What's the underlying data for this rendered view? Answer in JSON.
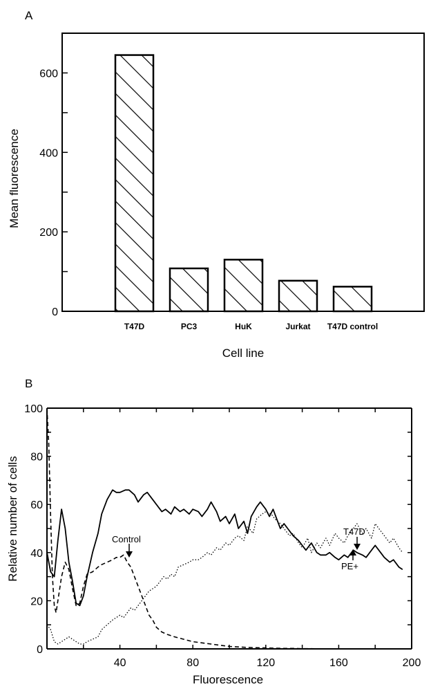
{
  "figure": {
    "panels": [
      "A",
      "B"
    ]
  },
  "chart_data": [
    {
      "type": "bar",
      "panel": "A",
      "categories": [
        "T47D",
        "PC3",
        "HuK",
        "Jurkat",
        "T47D control"
      ],
      "values": [
        645,
        108,
        130,
        77,
        62
      ],
      "xlabel": "Cell line",
      "ylabel": "Mean fluorescence",
      "ylim": [
        0,
        700
      ],
      "yticks": [
        0,
        200,
        400,
        600
      ],
      "ytick_labels": [
        "0",
        "200",
        "400",
        "600"
      ],
      "bar_fill": "diagonal-hatch",
      "grid": false
    },
    {
      "type": "line",
      "panel": "B",
      "xlabel": "Fluorescence",
      "ylabel": "Relative number of cells",
      "xlim": [
        0,
        200
      ],
      "ylim": [
        0,
        100
      ],
      "xticks": [
        40,
        80,
        120,
        160,
        200
      ],
      "xtick_labels": [
        "40",
        "80",
        "120",
        "160",
        "200"
      ],
      "yticks": [
        0,
        20,
        40,
        60,
        80,
        100
      ],
      "ytick_labels": [
        "0",
        "20",
        "40",
        "60",
        "80",
        "100"
      ],
      "grid": false,
      "annotations": [
        {
          "text": "Control",
          "x": 41,
          "y": 38
        },
        {
          "text": "T47D",
          "x": 170,
          "y": 47
        },
        {
          "text": "PE+",
          "x": 168,
          "y": 41
        }
      ],
      "series": [
        {
          "style": "solid",
          "x": [
            0,
            2,
            4,
            6,
            8,
            10,
            12,
            14,
            16,
            18,
            20,
            22,
            25,
            28,
            30,
            33,
            36,
            38,
            40,
            43,
            45,
            48,
            50,
            53,
            55,
            58,
            60,
            63,
            65,
            68,
            70,
            73,
            75,
            78,
            80,
            83,
            85,
            88,
            90,
            93,
            95,
            98,
            100,
            103,
            105,
            108,
            110,
            112,
            115,
            117,
            120,
            122,
            124,
            126,
            128,
            130,
            132,
            135,
            138,
            140,
            142,
            145,
            148,
            150,
            153,
            155,
            158,
            160,
            163,
            165,
            168,
            170,
            173,
            175,
            178,
            180,
            183,
            185,
            188,
            190,
            193,
            195
          ],
          "y": [
            40,
            32,
            30,
            45,
            58,
            50,
            36,
            28,
            19,
            18,
            22,
            30,
            40,
            48,
            56,
            62,
            66,
            65,
            65,
            66,
            66,
            64,
            61,
            64,
            65,
            62,
            60,
            57,
            58,
            56,
            59,
            57,
            58,
            56,
            58,
            57,
            55,
            58,
            61,
            57,
            53,
            55,
            52,
            56,
            50,
            53,
            48,
            55,
            59,
            61,
            58,
            55,
            58,
            54,
            50,
            52,
            50,
            47,
            45,
            43,
            41,
            44,
            40,
            39,
            39,
            40,
            38,
            37,
            39,
            38,
            41,
            40,
            39,
            38,
            41,
            43,
            40,
            38,
            36,
            37,
            34,
            33
          ]
        },
        {
          "style": "dashed",
          "x": [
            0,
            1,
            2,
            3,
            4,
            5,
            6,
            8,
            10,
            12,
            14,
            16,
            18,
            20,
            22,
            25,
            28,
            30,
            33,
            36,
            38,
            40,
            42,
            44,
            46,
            48,
            50,
            52,
            54,
            56,
            58,
            60,
            63,
            66,
            70,
            75,
            80,
            85,
            90,
            95,
            100,
            105,
            110,
            115,
            120,
            125,
            130,
            135,
            140,
            145,
            150,
            160,
            170,
            180,
            190
          ],
          "y": [
            100,
            85,
            55,
            30,
            18,
            15,
            20,
            30,
            36,
            33,
            25,
            18,
            19,
            26,
            31,
            32,
            34,
            35,
            36,
            37,
            38,
            38,
            39,
            36,
            34,
            30,
            26,
            22,
            18,
            14,
            12,
            9,
            7,
            6,
            5,
            4,
            3,
            2.5,
            2,
            1.5,
            1,
            0.8,
            0.6,
            0.5,
            0.4,
            0.3,
            0.2,
            0.2,
            0.1,
            0.1,
            0,
            0,
            0,
            0,
            0
          ]
        },
        {
          "style": "dotted",
          "x": [
            0,
            2,
            4,
            6,
            8,
            10,
            12,
            14,
            16,
            18,
            20,
            22,
            25,
            28,
            30,
            33,
            36,
            38,
            40,
            42,
            44,
            46,
            48,
            50,
            52,
            54,
            56,
            58,
            60,
            62,
            64,
            66,
            68,
            70,
            72,
            75,
            78,
            80,
            83,
            85,
            88,
            90,
            93,
            95,
            98,
            100,
            103,
            105,
            108,
            110,
            113,
            115,
            118,
            120,
            123,
            125,
            128,
            130,
            133,
            135,
            138,
            140,
            143,
            145,
            148,
            150,
            153,
            155,
            158,
            160,
            163,
            165,
            168,
            170,
            173,
            175,
            178,
            180,
            183,
            185,
            188,
            190,
            193,
            195
          ],
          "y": [
            10,
            8,
            3,
            2,
            3,
            4,
            5,
            4,
            3,
            2,
            2,
            3,
            4,
            5,
            8,
            10,
            12,
            13,
            14,
            13,
            15,
            17,
            16,
            18,
            20,
            22,
            24,
            25,
            26,
            28,
            30,
            29,
            31,
            30,
            34,
            35,
            36,
            37,
            37,
            38,
            40,
            39,
            42,
            41,
            44,
            43,
            46,
            47,
            45,
            51,
            48,
            54,
            56,
            57,
            56,
            54,
            52,
            50,
            47,
            48,
            44,
            42,
            46,
            40,
            44,
            42,
            46,
            43,
            48,
            46,
            44,
            47,
            50,
            52,
            48,
            50,
            46,
            52,
            49,
            47,
            44,
            46,
            42,
            40
          ]
        }
      ]
    }
  ]
}
